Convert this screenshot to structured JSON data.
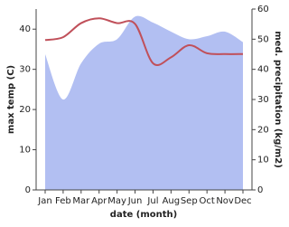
{
  "chart_data": {
    "type": "line-area",
    "categories": [
      "Jan",
      "Feb",
      "Mar",
      "Apr",
      "May",
      "Jun",
      "Jul",
      "Aug",
      "Sep",
      "Oct",
      "Nov",
      "Dec"
    ],
    "xlabel": "date (month)",
    "ylabel": "max temp (C)",
    "y2label": "med. precipitation (kg/m2)",
    "ylim": [
      0,
      45
    ],
    "yticks": [
      0,
      10,
      20,
      30,
      40
    ],
    "y2lim": [
      0,
      60
    ],
    "y2ticks": [
      0,
      10,
      20,
      30,
      40,
      50,
      60
    ],
    "series": [
      {
        "name": "med. precipitation",
        "color": "#b2bff2",
        "axis": "y2",
        "kind": "area",
        "values": [
          45,
          30,
          42,
          48.5,
          50,
          57.5,
          55.5,
          52.5,
          50,
          51,
          52.5,
          49
        ]
      },
      {
        "name": "max temp",
        "color": "#c0505a",
        "axis": "y",
        "kind": "line",
        "values": [
          37.3,
          38,
          41.5,
          42.7,
          41.5,
          41.3,
          31.5,
          33,
          36,
          34,
          33.8,
          33.8
        ]
      }
    ]
  }
}
